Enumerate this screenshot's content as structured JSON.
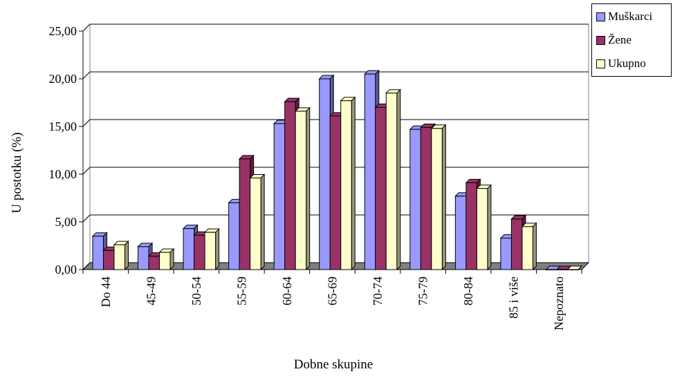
{
  "chart_data": {
    "type": "bar",
    "style": "3d-clustered",
    "title": "",
    "xlabel": "Dobne skupine",
    "ylabel": "U postotku (%)",
    "ylim": [
      0,
      25
    ],
    "yticks": [
      "0,00",
      "5,00",
      "10,00",
      "15,00",
      "20,00",
      "25,00"
    ],
    "grid": true,
    "legend_position": "top-right",
    "categories": [
      "Do 44",
      "45-49",
      "50-54",
      "55-59",
      "60-64",
      "65-69",
      "70-74",
      "75-79",
      "80-84",
      "85 i više",
      "Nepoznato"
    ],
    "series": [
      {
        "name": "Muškarci",
        "color": "#9999ff",
        "values": [
          3.5,
          2.4,
          4.3,
          7.0,
          15.3,
          20.0,
          20.5,
          14.7,
          7.7,
          3.3,
          0.0
        ]
      },
      {
        "name": "Žene",
        "color": "#993366",
        "values": [
          2.0,
          1.4,
          3.6,
          11.6,
          17.6,
          16.1,
          17.0,
          14.9,
          9.1,
          5.3,
          0.0
        ]
      },
      {
        "name": "Ukupno",
        "color": "#ffffcc",
        "values": [
          2.6,
          1.8,
          3.9,
          9.6,
          16.6,
          17.7,
          18.5,
          14.8,
          8.5,
          4.5,
          0.0
        ]
      }
    ]
  }
}
